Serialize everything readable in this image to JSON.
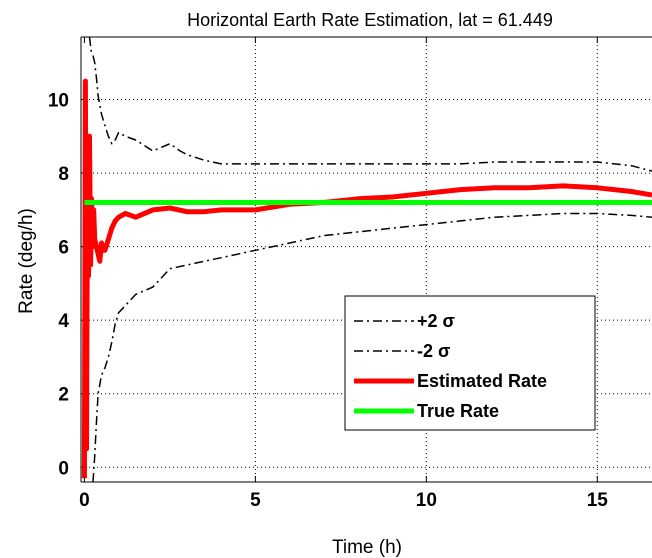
{
  "chart_data": {
    "type": "line",
    "title": "Horizontal Earth Rate Estimation, lat = 61.449",
    "xlabel": "Time (h)",
    "ylabel": "Rate (deg/h)",
    "xlim": [
      -0.1,
      16.6
    ],
    "ylim": [
      -0.4,
      11.7
    ],
    "x_ticks": [
      0,
      5,
      10,
      15
    ],
    "y_ticks": [
      0,
      2,
      4,
      6,
      8,
      10
    ],
    "x_tick_labels": [
      "0",
      "5",
      "10",
      "15"
    ],
    "y_tick_labels": [
      "0",
      "2",
      "4",
      "6",
      "8",
      "10"
    ],
    "grid": true,
    "legend_position": "center-right",
    "legend_entries": [
      "+2 σ",
      "-2 σ",
      "Estimated Rate",
      "True Rate"
    ],
    "series": [
      {
        "name": "+2 σ",
        "color": "#000000",
        "style": "dash-dot",
        "x": [
          0.15,
          0.2,
          0.25,
          0.3,
          0.35,
          0.4,
          0.5,
          0.6,
          0.7,
          0.8,
          0.9,
          1.0,
          1.2,
          1.5,
          2.0,
          2.5,
          2.8,
          3.0,
          3.5,
          4.0,
          5.0,
          6.0,
          7.0,
          8.0,
          9.0,
          10.0,
          11.0,
          12.0,
          13.0,
          14.0,
          15.0,
          16.0,
          16.6
        ],
        "y": [
          11.7,
          11.3,
          11.2,
          11.0,
          10.6,
          10.1,
          9.6,
          9.3,
          9.0,
          8.8,
          8.9,
          9.1,
          9.0,
          8.9,
          8.6,
          8.8,
          8.6,
          8.5,
          8.35,
          8.25,
          8.25,
          8.25,
          8.25,
          8.25,
          8.25,
          8.25,
          8.25,
          8.3,
          8.3,
          8.3,
          8.3,
          8.2,
          8.05
        ]
      },
      {
        "name": "-2 σ",
        "color": "#000000",
        "style": "dash-dot",
        "x": [
          0.25,
          0.3,
          0.35,
          0.4,
          0.5,
          0.6,
          0.7,
          0.8,
          0.9,
          1.0,
          1.2,
          1.5,
          2.0,
          2.5,
          3.0,
          3.5,
          4.0,
          5.0,
          6.0,
          7.0,
          8.0,
          9.0,
          10.0,
          11.0,
          12.0,
          13.0,
          14.0,
          15.0,
          16.0,
          16.6
        ],
        "y": [
          -0.4,
          0.3,
          1.2,
          2.0,
          2.5,
          2.7,
          3.0,
          3.4,
          3.9,
          4.2,
          4.4,
          4.7,
          4.9,
          5.4,
          5.5,
          5.6,
          5.7,
          5.9,
          6.1,
          6.3,
          6.4,
          6.5,
          6.6,
          6.7,
          6.8,
          6.85,
          6.9,
          6.9,
          6.85,
          6.8
        ]
      },
      {
        "name": "Estimated Rate",
        "color": "#ff0000",
        "style": "solid-thick",
        "x": [
          0.0,
          0.03,
          0.06,
          0.09,
          0.12,
          0.15,
          0.18,
          0.21,
          0.24,
          0.27,
          0.3,
          0.35,
          0.4,
          0.45,
          0.5,
          0.55,
          0.6,
          0.7,
          0.8,
          0.9,
          1.0,
          1.2,
          1.5,
          2.0,
          2.5,
          3.0,
          3.5,
          4.0,
          4.5,
          5.0,
          6.0,
          7.0,
          8.0,
          9.0,
          10.0,
          11.0,
          12.0,
          13.0,
          14.0,
          15.0,
          15.5,
          16.0,
          16.6
        ],
        "y": [
          -0.3,
          10.5,
          0.5,
          8.0,
          5.2,
          9.0,
          5.5,
          7.3,
          6.0,
          7.0,
          6.2,
          6.0,
          5.8,
          5.6,
          6.1,
          5.9,
          5.9,
          6.2,
          6.5,
          6.7,
          6.8,
          6.9,
          6.8,
          7.0,
          7.05,
          6.95,
          6.95,
          7.0,
          7.0,
          7.0,
          7.15,
          7.2,
          7.3,
          7.35,
          7.45,
          7.55,
          7.6,
          7.6,
          7.65,
          7.6,
          7.55,
          7.5,
          7.4
        ]
      },
      {
        "name": "True Rate",
        "color": "#00ff00",
        "style": "solid-thick",
        "x": [
          0,
          16.6
        ],
        "y": [
          7.2,
          7.2
        ]
      }
    ]
  }
}
